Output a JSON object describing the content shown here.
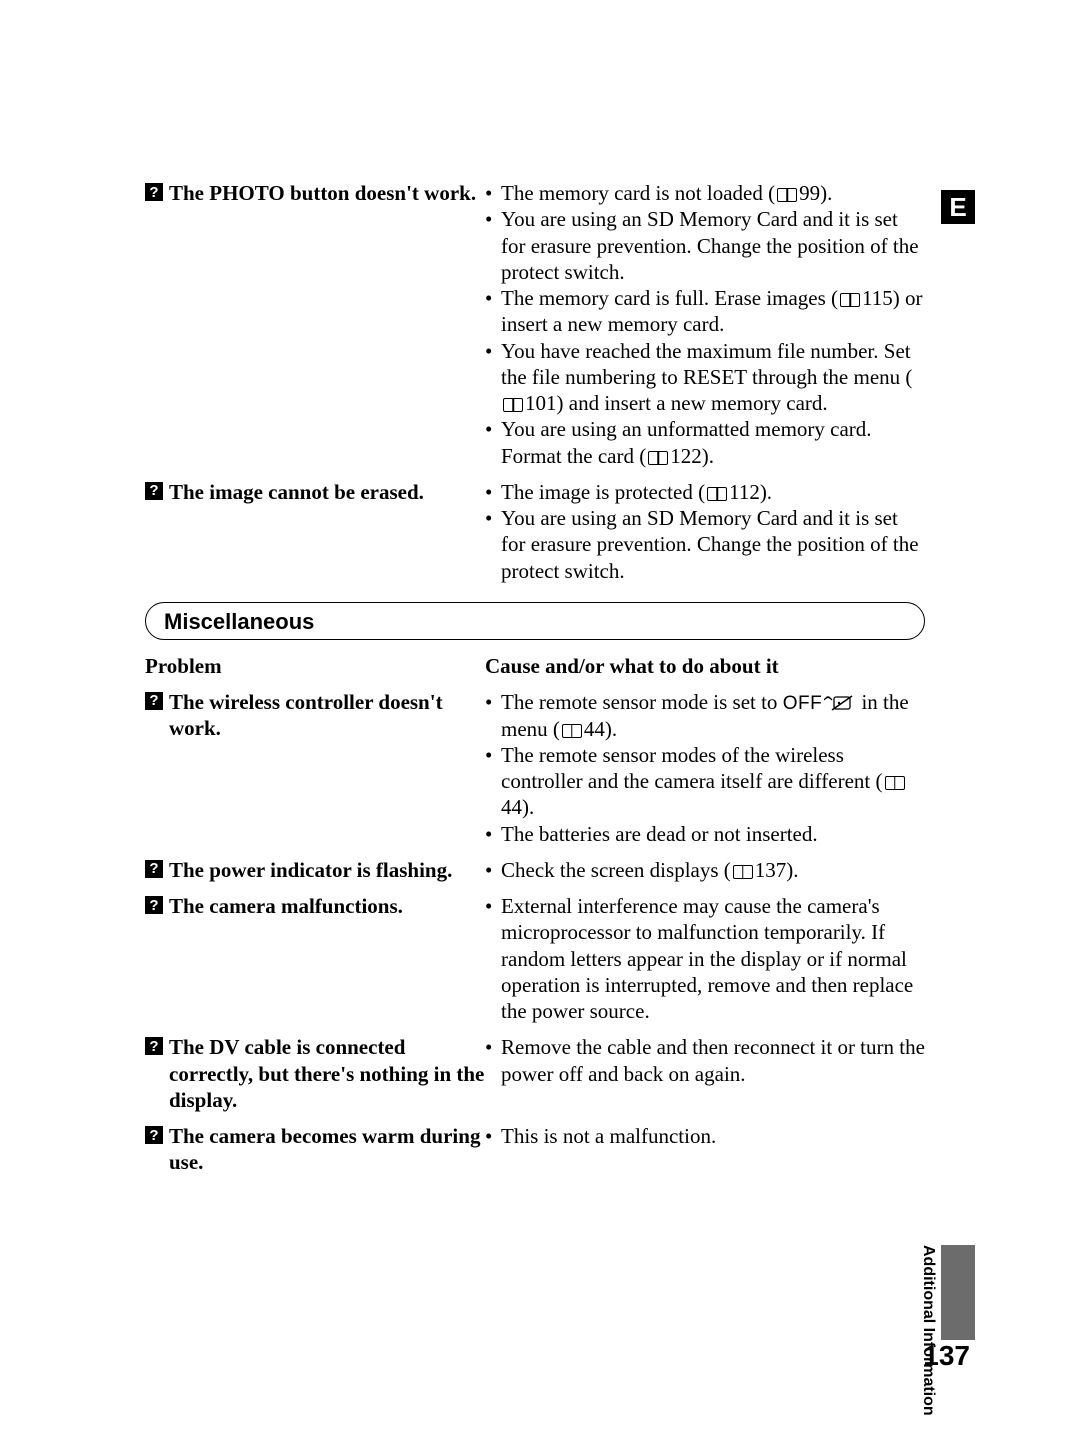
{
  "badge": "E",
  "side_label_1": "Additional",
  "side_label_2": "Information",
  "page_number": "137",
  "top_rows": [
    {
      "problem": "The PHOTO button doesn't work.",
      "causes": [
        "The memory card is not loaded (<book/>99).",
        "You are using an SD Memory Card and it is set for erasure prevention. Change the position of the protect switch.",
        "The memory card is full. Erase images (<book/>115) or insert a new memory card.",
        "You have reached the maximum file number. Set the file numbering to RESET through the menu (<book/>101) and insert a new memory card.",
        "You are using an unformatted memory card. Format the card (<book/>122)."
      ]
    },
    {
      "problem": "The image cannot be erased.",
      "causes": [
        "The image is protected (<book/>112).",
        "You are using an SD Memory Card and it is set for erasure prevention. Change the position of the protect switch."
      ]
    }
  ],
  "section_title": "Miscellaneous",
  "headers": {
    "left": "Problem",
    "right": "Cause and/or what to do about it"
  },
  "misc_rows": [
    {
      "problem": "The wireless controller doesn't work.",
      "causes": [
        "The remote sensor mode is set to <off/><remote/> in the menu (<book/>44).",
        "The remote sensor modes of the wireless controller and the camera itself are different (<book/>44).",
        "The batteries are dead or not inserted."
      ]
    },
    {
      "problem": "The power indicator is flashing.",
      "causes": [
        "Check the screen displays (<book/>137)."
      ]
    },
    {
      "problem": "The camera malfunctions.",
      "causes": [
        "External interference may cause the camera's microprocessor to malfunction temporarily. If random letters appear in the display or if normal operation is interrupted, remove and then replace the power source."
      ]
    },
    {
      "problem": "The DV cable is connected correctly, but there's nothing in the display.",
      "causes": [
        "Remove the cable and then reconnect it or turn the power off and back on again."
      ]
    },
    {
      "problem": "The camera becomes warm during use.",
      "causes": [
        "This is not a malfunction."
      ]
    }
  ]
}
